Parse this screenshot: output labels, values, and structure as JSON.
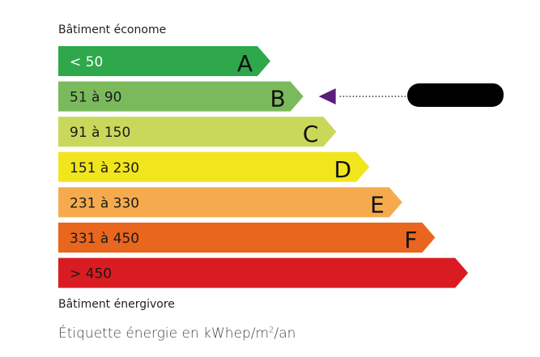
{
  "top_label": "Bâtiment économe",
  "bottom_label": "Bâtiment énergivore",
  "unit_caption_prefix": "Étiquette énergie en kWhep/m",
  "unit_caption_sup": "2",
  "unit_caption_suffix": "/an",
  "classes": [
    {
      "letter": "A",
      "range": "< 50",
      "color": "#2ea84a",
      "text_color": "#ffffff"
    },
    {
      "letter": "B",
      "range": "51 à 90",
      "color": "#7aba5c",
      "text_color": "#1a1a1a"
    },
    {
      "letter": "C",
      "range": "91 à 150",
      "color": "#c9d85a",
      "text_color": "#1a1a1a"
    },
    {
      "letter": "D",
      "range": "151 à 230",
      "color": "#f1e51e",
      "text_color": "#1a1a1a"
    },
    {
      "letter": "E",
      "range": "231 à 330",
      "color": "#f5ab4d",
      "text_color": "#1a1a1a"
    },
    {
      "letter": "F",
      "range": "331 à 450",
      "color": "#e8661d",
      "text_color": "#1a1a1a"
    },
    {
      "letter": "",
      "range": "> 450",
      "color": "#d91c22",
      "text_color": "#1a1a1a"
    }
  ],
  "indicator": {
    "class": "B",
    "color": "#5b1f7a"
  }
}
